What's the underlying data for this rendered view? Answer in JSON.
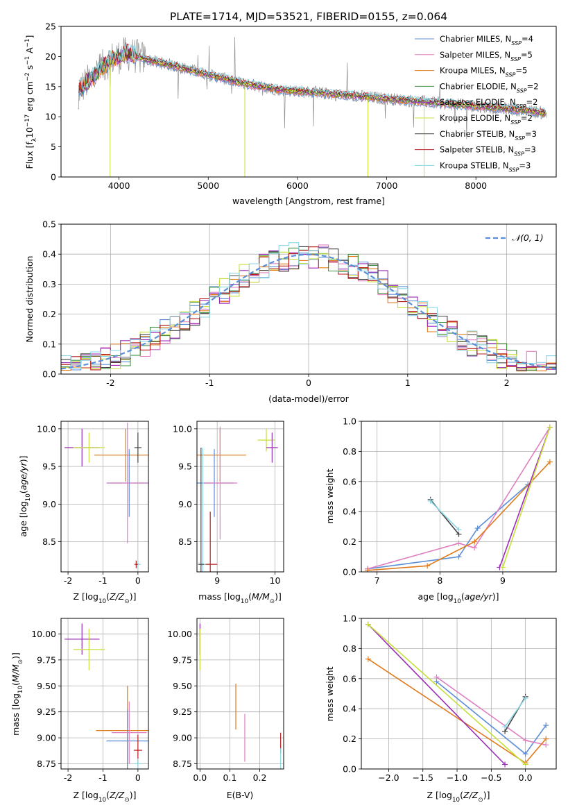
{
  "colors": {
    "Chabrier MILES": "#5b8ed8",
    "Salpeter MILES": "#e07fc0",
    "Kroupa MILES": "#e07b1c",
    "Chabrier ELODIE": "#3f8f3f",
    "Salpeter ELODIE": "#9a2ab8",
    "Kroupa ELODIE": "#c7df3a",
    "Chabrier STELIB": "#444444",
    "Salpeter STELIB": "#b81b1b",
    "Kroupa STELIB": "#8ad6e4",
    "normal_curve": "#5b8ed8",
    "grey_spectrum": "#8c8c8c"
  },
  "chart_data": [
    {
      "id": "spectrum",
      "type": "line",
      "title": "PLATE=1714, MJD=53521, FIBERID=0155, z=0.064",
      "xlabel": "wavelength [Angstrom, rest frame]",
      "ylabel": "Flux [f_λ 10^-17 erg cm^-2 s^-1 A^-1]",
      "xlim": [
        3350,
        8900
      ],
      "ylim": [
        0,
        25
      ],
      "xticks": [
        4000,
        5000,
        6000,
        7000,
        8000
      ],
      "yticks": [
        0,
        5,
        10,
        15,
        20,
        25
      ],
      "legend_position": "top-right",
      "legend": [
        {
          "name": "Chabrier MILES",
          "nssp": "4"
        },
        {
          "name": "Salpeter MILES",
          "nssp": "5"
        },
        {
          "name": "Kroupa MILES",
          "nssp": "5"
        },
        {
          "name": "Chabrier ELODIE",
          "nssp": "2"
        },
        {
          "name": "Salpeter ELODIE",
          "nssp": "2"
        },
        {
          "name": "Kroupa ELODIE",
          "nssp": "2"
        },
        {
          "name": "Chabrier STELIB",
          "nssp": "3"
        },
        {
          "name": "Salpeter STELIB",
          "nssp": "3"
        },
        {
          "name": "Kroupa STELIB",
          "nssp": "3"
        }
      ],
      "continuum": {
        "x": [
          3550,
          3700,
          3900,
          4100,
          4300,
          4600,
          5000,
          5400,
          5800,
          6200,
          6600,
          7000,
          7400,
          7800,
          8200,
          8600,
          8800
        ],
        "y": [
          14.5,
          16.5,
          19.5,
          20.5,
          19.5,
          18.5,
          17.0,
          15.5,
          14.5,
          14.0,
          13.5,
          13.0,
          12.5,
          12.0,
          11.5,
          11.0,
          10.5
        ]
      },
      "dropouts": [
        {
          "x": 3900,
          "y_min": 0
        },
        {
          "x": 5410,
          "y_min": 0
        },
        {
          "x": 6790,
          "y_min": 0
        },
        {
          "x": 7420,
          "y_min": 0
        }
      ]
    },
    {
      "id": "residuals",
      "type": "line",
      "xlabel": "(data-model)/error",
      "ylabel": "Normed distribution",
      "xlim": [
        -2.5,
        2.5
      ],
      "ylim": [
        0,
        0.5
      ],
      "xticks": [
        -2,
        -1,
        0,
        1,
        2
      ],
      "yticks": [
        0.0,
        0.1,
        0.2,
        0.3,
        0.4,
        0.5
      ],
      "legend_position": "top-right",
      "normal_label": "𝒩(0, 1)",
      "bin_width": 0.1
    },
    {
      "id": "age_vs_Z",
      "type": "scatter",
      "xlabel": "Z [log10(Z/Z⊙)]",
      "ylabel": "age [log10(age/yr)]",
      "xlim": [
        -2.2,
        0.3
      ],
      "ylim": [
        8.1,
        10.1
      ],
      "xticks": [
        -2,
        -1,
        0
      ],
      "yticks": [
        8.5,
        9.0,
        9.5,
        10.0
      ],
      "points": [
        {
          "model": "Salpeter ELODIE",
          "x": -1.6,
          "y": 9.75,
          "xerr": 0.5,
          "yerr": 0.25
        },
        {
          "model": "Kroupa ELODIE",
          "x": -1.4,
          "y": 9.75,
          "xerr": 0.45,
          "yerr": 0.2
        },
        {
          "model": "Kroupa MILES",
          "x": -0.35,
          "y": 9.65,
          "xerr": 0.9,
          "yerr": 0.35
        },
        {
          "model": "Chabrier MILES",
          "x": -0.25,
          "y": 9.28,
          "xerr": 0.65,
          "yerr": 0.45
        },
        {
          "model": "Salpeter MILES",
          "x": -0.3,
          "y": 9.28,
          "xerr": 0.6,
          "yerr": 0.8
        },
        {
          "model": "Chabrier STELIB",
          "x": 0.0,
          "y": 9.75,
          "xerr": 0.1,
          "yerr": 0.2
        },
        {
          "model": "Kroupa STELIB",
          "x": 0.0,
          "y": 8.2,
          "xerr": 0.08,
          "yerr": 0.05
        },
        {
          "model": "Salpeter STELIB",
          "x": -0.05,
          "y": 8.2,
          "xerr": 0.05,
          "yerr": 0.05
        }
      ]
    },
    {
      "id": "age_vs_mass",
      "type": "scatter",
      "xlabel": "mass [log10(M/M⊙)]",
      "ylabel": "",
      "xlim": [
        8.65,
        10.15
      ],
      "ylim": [
        8.1,
        10.1
      ],
      "xticks": [
        9,
        10
      ],
      "yticks": [
        8.5,
        9.0,
        9.5,
        10.0
      ],
      "points": [
        {
          "model": "Kroupa ELODIE",
          "x": 9.85,
          "y": 9.85,
          "xerr": 0.15,
          "yerr": 0.15
        },
        {
          "model": "Salpeter ELODIE",
          "x": 9.95,
          "y": 9.75,
          "xerr": 0.1,
          "yerr": 0.2
        },
        {
          "model": "Kroupa MILES",
          "x": 9.05,
          "y": 9.65,
          "xerr": 0.45,
          "yerr": 0.35
        },
        {
          "model": "Chabrier MILES",
          "x": 8.95,
          "y": 9.28,
          "xerr": 0.35,
          "yerr": 0.45
        },
        {
          "model": "Salpeter MILES",
          "x": 9.05,
          "y": 9.28,
          "xerr": 0.3,
          "yerr": 0.75
        },
        {
          "model": "Salpeter STELIB",
          "x": 8.88,
          "y": 8.2,
          "xerr": 0.12,
          "yerr": 0.7
        },
        {
          "model": "Kroupa STELIB",
          "x": 8.75,
          "y": 8.2,
          "xerr": 0.05,
          "yerr": 1.55
        },
        {
          "model": "Chabrier STELIB",
          "x": 8.72,
          "y": 8.2,
          "xerr": 0.05,
          "yerr": 1.55
        }
      ]
    },
    {
      "id": "weight_vs_age",
      "type": "line",
      "xlabel": "age [log10(age/yr)]",
      "ylabel": "mass weight",
      "xlim": [
        6.75,
        9.85
      ],
      "ylim": [
        0,
        1
      ],
      "xticks": [
        7,
        8,
        9
      ],
      "yticks": [
        0.0,
        0.2,
        0.4,
        0.6,
        0.8,
        1.0
      ],
      "series": [
        {
          "model": "Chabrier MILES",
          "x": [
            6.85,
            8.3,
            8.6,
            9.4
          ],
          "y": [
            0.02,
            0.1,
            0.29,
            0.58
          ]
        },
        {
          "model": "Salpeter MILES",
          "x": [
            6.85,
            8.3,
            8.55,
            9.75
          ],
          "y": [
            0.02,
            0.19,
            0.16,
            0.96
          ]
        },
        {
          "model": "Kroupa MILES",
          "x": [
            6.85,
            7.8,
            8.55,
            9.75
          ],
          "y": [
            0.01,
            0.04,
            0.2,
            0.73
          ]
        },
        {
          "model": "Salpeter ELODIE",
          "x": [
            8.95,
            9.75
          ],
          "y": [
            0.03,
            0.96
          ]
        },
        {
          "model": "Kroupa ELODIE",
          "x": [
            9.0,
            9.75
          ],
          "y": [
            0.03,
            0.96
          ]
        },
        {
          "model": "Chabrier STELIB",
          "x": [
            7.85,
            8.3
          ],
          "y": [
            0.48,
            0.25
          ]
        },
        {
          "model": "Kroupa STELIB",
          "x": [
            7.85,
            8.3
          ],
          "y": [
            0.47,
            0.28
          ]
        }
      ]
    },
    {
      "id": "mass_vs_Z",
      "type": "scatter",
      "xlabel": "Z [log10(Z/Z⊙)]",
      "ylabel": "mass [log10(M/M⊙)]",
      "xlim": [
        -2.2,
        0.3
      ],
      "ylim": [
        8.7,
        10.15
      ],
      "xticks": [
        -2,
        -1,
        0
      ],
      "yticks": [
        8.75,
        9.0,
        9.25,
        9.5,
        9.75,
        10.0
      ],
      "points": [
        {
          "model": "Salpeter ELODIE",
          "x": -1.6,
          "y": 9.95,
          "xerr": 0.5,
          "yerr": 0.15
        },
        {
          "model": "Kroupa ELODIE",
          "x": -1.4,
          "y": 9.85,
          "xerr": 0.45,
          "yerr": 0.2
        },
        {
          "model": "Kroupa MILES",
          "x": -0.3,
          "y": 9.07,
          "xerr": 0.9,
          "yerr": 0.43
        },
        {
          "model": "Chabrier MILES",
          "x": -0.3,
          "y": 8.97,
          "xerr": 0.6,
          "yerr": 0.3
        },
        {
          "model": "Salpeter MILES",
          "x": -0.25,
          "y": 9.05,
          "xerr": 0.5,
          "yerr": 0.3
        },
        {
          "model": "Salpeter STELIB",
          "x": 0.0,
          "y": 8.88,
          "xerr": 0.12,
          "yerr": 0.15
        },
        {
          "model": "Kroupa STELIB",
          "x": 0.0,
          "y": 8.75,
          "xerr": 0.1,
          "yerr": 0.05
        }
      ]
    },
    {
      "id": "mass_vs_ebv",
      "type": "scatter",
      "xlabel": "E(B-V)",
      "ylabel": "",
      "xlim": [
        -0.01,
        0.28
      ],
      "ylim": [
        8.7,
        10.15
      ],
      "xticks": [
        0.0,
        0.1,
        0.2
      ],
      "yticks": [
        8.75,
        9.0,
        9.25,
        9.5,
        9.75,
        10.0
      ],
      "points": [
        {
          "model": "Salpeter ELODIE",
          "x": 0.0,
          "y": 9.95,
          "xerr": 0.0,
          "yerr": 0.15
        },
        {
          "model": "Kroupa ELODIE",
          "x": 0.0,
          "y": 9.85,
          "xerr": 0.0,
          "yerr": 0.2
        },
        {
          "model": "Kroupa MILES",
          "x": 0.12,
          "y": 9.3,
          "xerr": 0.0,
          "yerr": 0.22
        },
        {
          "model": "Salpeter MILES",
          "x": 0.15,
          "y": 9.0,
          "xerr": 0.0,
          "yerr": 0.23
        },
        {
          "model": "Salpeter STELIB",
          "x": 0.27,
          "y": 8.95,
          "xerr": 0.0,
          "yerr": 0.1
        },
        {
          "model": "Kroupa STELIB",
          "x": 0.27,
          "y": 8.8,
          "xerr": 0.0,
          "yerr": 0.1
        }
      ]
    },
    {
      "id": "weight_vs_Z",
      "type": "line",
      "xlabel": "Z [log10(Z/Z⊙)]",
      "ylabel": "mass weight",
      "xlim": [
        -2.4,
        0.45
      ],
      "ylim": [
        0,
        1
      ],
      "xticks": [
        -2.0,
        -1.5,
        -1.0,
        -0.5,
        0.0
      ],
      "yticks": [
        0.0,
        0.2,
        0.4,
        0.6,
        0.8,
        1.0
      ],
      "series": [
        {
          "model": "Chabrier MILES",
          "x": [
            -1.3,
            0.0,
            0.3
          ],
          "y": [
            0.58,
            0.1,
            0.29
          ]
        },
        {
          "model": "Salpeter MILES",
          "x": [
            -1.3,
            0.0,
            0.3
          ],
          "y": [
            0.61,
            0.19,
            0.16
          ]
        },
        {
          "model": "Kroupa MILES",
          "x": [
            -2.3,
            0.0,
            0.3
          ],
          "y": [
            0.73,
            0.04,
            0.2
          ]
        },
        {
          "model": "Salpeter ELODIE",
          "x": [
            -2.3,
            -0.3
          ],
          "y": [
            0.96,
            0.03
          ]
        },
        {
          "model": "Kroupa ELODIE",
          "x": [
            -2.3,
            0.0
          ],
          "y": [
            0.96,
            0.03
          ]
        },
        {
          "model": "Chabrier STELIB",
          "x": [
            -0.3,
            0.0
          ],
          "y": [
            0.25,
            0.48
          ]
        },
        {
          "model": "Kroupa STELIB",
          "x": [
            -0.3,
            0.0
          ],
          "y": [
            0.28,
            0.47
          ]
        }
      ]
    }
  ]
}
